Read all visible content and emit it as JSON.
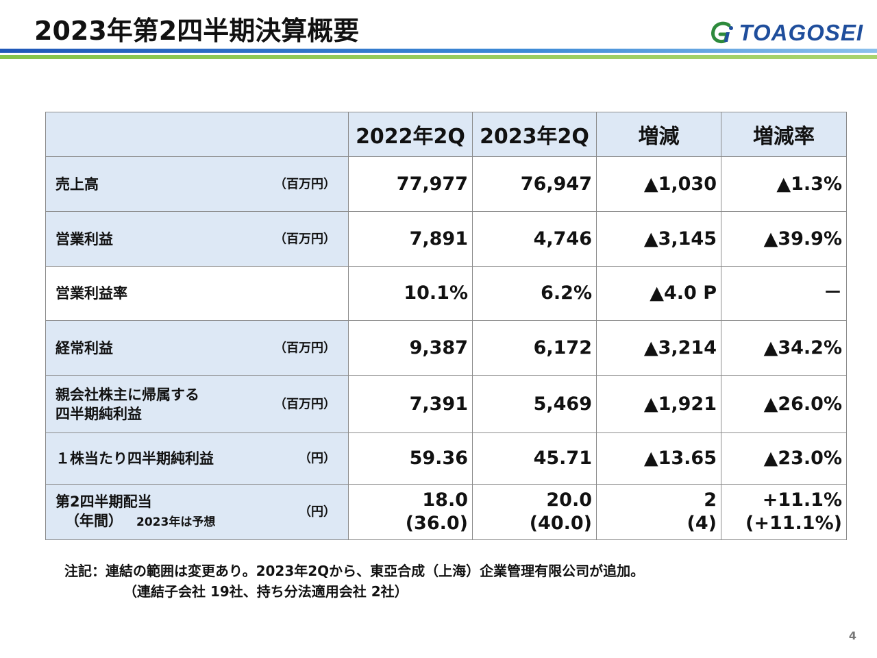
{
  "header": {
    "title": "2023年第2四半期決算概要",
    "logo_text": "TOAGOSEI"
  },
  "table": {
    "columns": [
      "",
      "2022年2Q",
      "2023年2Q",
      "増減",
      "増減率"
    ],
    "rows": [
      {
        "label": "売上高",
        "unit": "（百万円）",
        "v2022": "77,977",
        "v2023": "76,947",
        "diff": "▲1,030",
        "rate": "▲1.3%"
      },
      {
        "label": "営業利益",
        "unit": "（百万円）",
        "v2022": "7,891",
        "v2023": "4,746",
        "diff": "▲3,145",
        "rate": "▲39.9%"
      },
      {
        "label": "営業利益率",
        "unit": "",
        "v2022": "10.1%",
        "v2023": "6.2%",
        "diff": "▲4.0 P",
        "rate": "－"
      },
      {
        "label": "経常利益",
        "unit": "（百万円）",
        "v2022": "9,387",
        "v2023": "6,172",
        "diff": "▲3,214",
        "rate": "▲34.2%"
      },
      {
        "label_line1": "親会社株主に帰属する",
        "label_line2": "四半期純利益",
        "unit": "（百万円）",
        "v2022": "7,391",
        "v2023": "5,469",
        "diff": "▲1,921",
        "rate": "▲26.0%"
      },
      {
        "label": "１株当たり四半期純利益",
        "unit": "（円）",
        "v2022": "59.36",
        "v2023": "45.71",
        "diff": "▲13.65",
        "rate": "▲23.0%"
      },
      {
        "label_line1": "第2四半期配当",
        "label_line2": "（年間）",
        "label_note": "2023年は予想",
        "unit": "（円）",
        "v2022": "18.0",
        "v2022_annual": "(36.0)",
        "v2023": "20.0",
        "v2023_annual": "(40.0)",
        "diff": "2",
        "diff_annual": "(4)",
        "rate": "+11.1%",
        "rate_annual": "(+11.1%)"
      }
    ]
  },
  "footnote": {
    "line1": "注記：連結の範囲は変更あり。2023年2Qから、東亞合成（上海）企業管理有限公司が追加。",
    "line2": "（連結子会社 19社、持ち分法適用会社 2社）"
  },
  "page_number": "4",
  "colors": {
    "header_bg": "#dde8f5",
    "brand_blue": "#1f4e9c",
    "accent_green": "#84c34a"
  }
}
